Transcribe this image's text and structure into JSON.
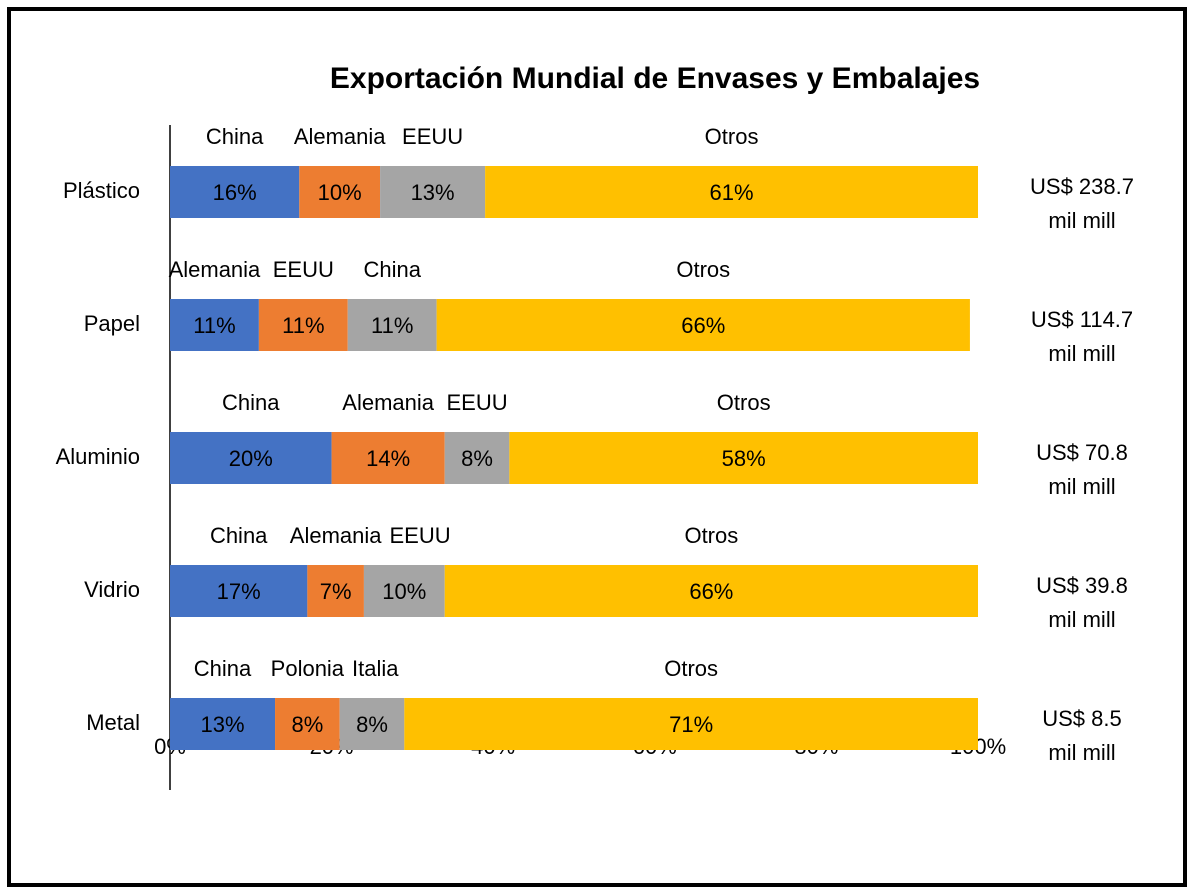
{
  "chart_data": {
    "type": "bar",
    "orientation": "horizontal",
    "stacked": true,
    "title": "Exportación Mundial de Envases y Embalajes",
    "categories": [
      "Plástico",
      "Papel",
      "Aluminio",
      "Vidrio",
      "Metal"
    ],
    "series": [
      {
        "color": "#4472c4",
        "values": [
          16,
          11,
          20,
          17,
          13
        ],
        "value_labels": [
          "16%",
          "11%",
          "20%",
          "17%",
          "13%"
        ]
      },
      {
        "color": "#ed7d31",
        "values": [
          10,
          11,
          14,
          7,
          8
        ],
        "value_labels": [
          "10%",
          "11%",
          "14%",
          "7%",
          "8%"
        ]
      },
      {
        "color": "#a5a5a5",
        "values": [
          13,
          11,
          8,
          10,
          8
        ],
        "value_labels": [
          "13%",
          "11%",
          "8%",
          "10%",
          "8%"
        ]
      },
      {
        "color": "#ffc000",
        "values": [
          61,
          66,
          58,
          66,
          71
        ],
        "value_labels": [
          "61%",
          "66%",
          "58%",
          "66%",
          "71%"
        ]
      }
    ],
    "segment_names": [
      [
        "China",
        "Alemania",
        "EEUU",
        "Otros"
      ],
      [
        "Alemania",
        "EEUU",
        "China",
        "Otros"
      ],
      [
        "China",
        "Alemania",
        "EEUU",
        "Otros"
      ],
      [
        "China",
        "Alemania",
        "EEUU",
        "Otros"
      ],
      [
        "China",
        "Polonia",
        "Italia",
        "Otros"
      ]
    ],
    "totals": [
      [
        "US$ 238.7",
        "mil mill"
      ],
      [
        "US$ 114.7",
        "mil mill"
      ],
      [
        "US$ 70.8",
        "mil mill"
      ],
      [
        "US$ 39.8",
        "mil mill"
      ],
      [
        "US$ 8.5",
        "mil mill"
      ]
    ],
    "xlim": [
      0,
      100
    ],
    "xticks": [
      {
        "value": 0,
        "label": "0%"
      },
      {
        "value": 20,
        "label": "20%"
      },
      {
        "value": 40,
        "label": "40%"
      },
      {
        "value": 60,
        "label": "60%"
      },
      {
        "value": 80,
        "label": "80%"
      },
      {
        "value": 100,
        "label": "100%"
      }
    ],
    "grid": false
  }
}
